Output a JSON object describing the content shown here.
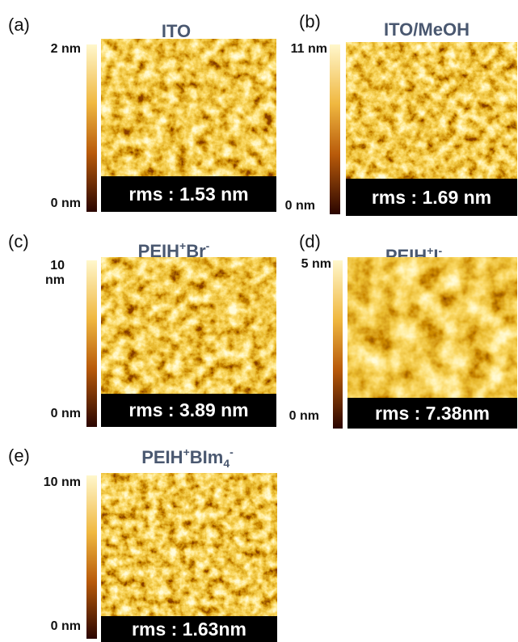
{
  "panels": [
    {
      "label": "(a)",
      "title": [
        {
          "text": "ITO"
        }
      ],
      "scale_max": "2 nm",
      "scale_min": "0 nm",
      "rms": "rms : 1.53 nm"
    },
    {
      "label": "(b)",
      "title": [
        {
          "text": "ITO/MeOH"
        }
      ],
      "scale_max": "11 nm",
      "scale_min": "0 nm",
      "rms": "rms : 1.69 nm"
    },
    {
      "label": "(c)",
      "title": [
        {
          "text": "PEIH"
        },
        {
          "text": "+",
          "position": "sup"
        },
        {
          "text": "Br"
        },
        {
          "text": "-",
          "position": "sup"
        }
      ],
      "scale_max": "10 nm",
      "scale_min": "0 nm",
      "rms": "rms : 3.89 nm"
    },
    {
      "label": "(d)",
      "title": [
        {
          "text": "PEIH"
        },
        {
          "text": "+",
          "position": "sup"
        },
        {
          "text": "I"
        },
        {
          "text": "-",
          "position": "sup"
        }
      ],
      "scale_max": "5 nm",
      "scale_min": "0 nm",
      "rms": "rms : 7.38nm"
    },
    {
      "label": "(e)",
      "title": [
        {
          "text": "PEIH"
        },
        {
          "text": "+",
          "position": "sup"
        },
        {
          "text": "BIm"
        },
        {
          "text": "4",
          "position": "sub"
        },
        {
          "text": "-",
          "position": "sup"
        }
      ],
      "scale_max": "10 nm",
      "scale_min": "0 nm",
      "rms": "rms : 1.63nm"
    }
  ]
}
